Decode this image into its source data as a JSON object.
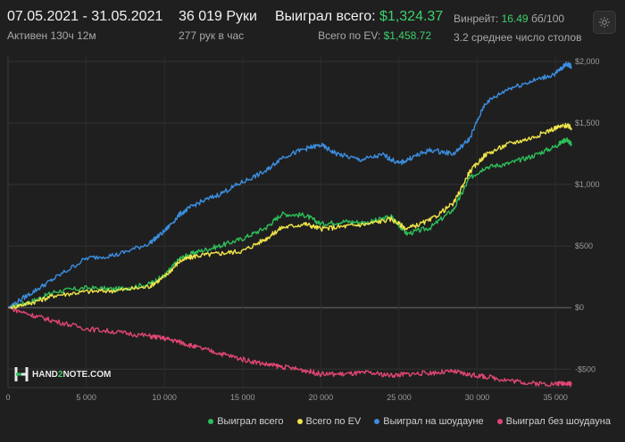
{
  "header": {
    "date_range": "07.05.2021 - 31.05.2021",
    "active_time": "Активен 130ч 12м",
    "hands": "36 019 Руки",
    "hands_per_hour": "277 рук в час",
    "won_total_label": "Выиграл всего:",
    "won_total_value": "$1,324.37",
    "ev_label": "Всего по EV:",
    "ev_value": "$1,458.72",
    "winrate_label": "Винрейт:",
    "winrate_value": "16.49",
    "winrate_unit": "бб/100",
    "avg_tables": "3.2 среднее число столов",
    "settings_icon": "gear-icon"
  },
  "logo": {
    "prefix": "HAND",
    "digit": "2",
    "suffix": "NOTE.COM"
  },
  "colors": {
    "green": "#2ebd59",
    "yellow": "#f1e54a",
    "blue": "#3b8ee0",
    "red": "#e04673",
    "bg": "#1f1f1f"
  },
  "chart_data": {
    "type": "line",
    "xlim": [
      0,
      36019
    ],
    "ylim": [
      -650,
      2050
    ],
    "x_ticks": [
      0,
      5000,
      10000,
      15000,
      20000,
      25000,
      30000,
      35000
    ],
    "x_tick_labels": [
      "0",
      "5 000",
      "10 000",
      "15 000",
      "20 000",
      "25 000",
      "30 000",
      "35 000"
    ],
    "y_ticks": [
      -500,
      0,
      500,
      1000,
      1500,
      2000
    ],
    "y_tick_labels": [
      "-$500",
      "$0",
      "$500",
      "$1,000",
      "$1,500",
      "$2,000"
    ],
    "grid": true,
    "legend": "bottom-right",
    "series": [
      {
        "name": "Выиграл всего",
        "color": "#2ebd59",
        "x": [
          0,
          1500,
          3000,
          5000,
          7000,
          9000,
          10000,
          11000,
          12000,
          13500,
          15000,
          16500,
          17500,
          19000,
          20000,
          21500,
          23000,
          24500,
          25500,
          27000,
          28500,
          29500,
          30500,
          32000,
          33500,
          35000,
          35700,
          36019
        ],
        "y": [
          0,
          50,
          130,
          160,
          150,
          190,
          260,
          400,
          450,
          500,
          560,
          650,
          760,
          750,
          680,
          700,
          690,
          740,
          600,
          650,
          800,
          1050,
          1140,
          1170,
          1230,
          1310,
          1370,
          1324
        ]
      },
      {
        "name": "Всего по EV",
        "color": "#f1e54a",
        "x": [
          0,
          1500,
          3000,
          5000,
          7000,
          9000,
          10000,
          11000,
          12000,
          13500,
          15000,
          16500,
          17500,
          19000,
          20000,
          21500,
          23000,
          24500,
          25500,
          27000,
          28500,
          29500,
          30500,
          32000,
          33500,
          35000,
          35700,
          36019
        ],
        "y": [
          0,
          40,
          100,
          130,
          140,
          170,
          250,
          380,
          420,
          440,
          460,
          560,
          650,
          680,
          640,
          660,
          680,
          720,
          640,
          710,
          850,
          1100,
          1240,
          1330,
          1380,
          1460,
          1480,
          1459
        ]
      },
      {
        "name": "Выиграл на шоудауне",
        "color": "#3b8ee0",
        "x": [
          0,
          1500,
          3000,
          5000,
          7000,
          9000,
          10000,
          11000,
          12000,
          13500,
          15000,
          16500,
          17500,
          19000,
          20000,
          21000,
          22500,
          24000,
          25000,
          26000,
          27000,
          28500,
          29500,
          30500,
          32000,
          33500,
          35000,
          35700,
          36019
        ],
        "y": [
          0,
          120,
          240,
          400,
          430,
          520,
          620,
          760,
          840,
          920,
          1020,
          1110,
          1220,
          1290,
          1320,
          1250,
          1200,
          1240,
          1170,
          1230,
          1280,
          1250,
          1370,
          1660,
          1780,
          1840,
          1900,
          1980,
          1960
        ]
      },
      {
        "name": "Выиграл без шоудауна",
        "color": "#e04673",
        "x": [
          0,
          1500,
          3000,
          5000,
          7000,
          9000,
          10000,
          11000,
          12000,
          13500,
          15000,
          16500,
          17500,
          19000,
          20000,
          21500,
          23000,
          24500,
          25500,
          27000,
          28500,
          29500,
          30500,
          32000,
          33500,
          35000,
          35700,
          36019
        ],
        "y": [
          0,
          -60,
          -110,
          -170,
          -200,
          -230,
          -250,
          -280,
          -320,
          -370,
          -420,
          -460,
          -480,
          -510,
          -540,
          -540,
          -530,
          -550,
          -540,
          -530,
          -520,
          -545,
          -560,
          -590,
          -615,
          -620,
          -610,
          -625
        ]
      }
    ]
  }
}
